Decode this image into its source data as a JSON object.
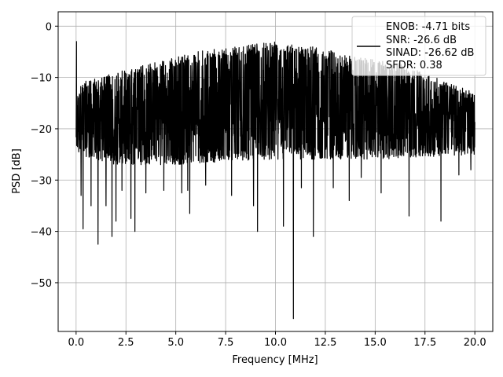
{
  "chart_data": {
    "type": "line",
    "xlabel": "Frequency [MHz]",
    "ylabel": "PSD [dB]",
    "xlim": [
      -0.9,
      20.9
    ],
    "ylim": [
      -59.5,
      2.8
    ],
    "xticks": [
      0.0,
      2.5,
      5.0,
      7.5,
      10.0,
      12.5,
      15.0,
      17.5,
      20.0
    ],
    "xtick_labels": [
      "0.0",
      "2.5",
      "5.0",
      "7.5",
      "10.0",
      "12.5",
      "15.0",
      "17.5",
      "20.0"
    ],
    "yticks": [
      0,
      -10,
      -20,
      -30,
      -40,
      -50
    ],
    "ytick_labels": [
      "0",
      "−10",
      "−20",
      "−30",
      "−40",
      "−50"
    ],
    "grid": true,
    "legend_placement": "top-right",
    "line_color": "#000000",
    "legend": [
      "ENOB: -4.71 bits",
      "SNR: -26.6 dB",
      "SINAD: -26.62 dB",
      "SFDR: 0.38"
    ],
    "series": [
      {
        "x_range": [
          0,
          20
        ],
        "band_upper": [
          [
            0,
            -14
          ],
          [
            0.2,
            -11
          ],
          [
            2,
            -9
          ],
          [
            4,
            -7
          ],
          [
            6,
            -5
          ],
          [
            8,
            -4
          ],
          [
            10,
            -3
          ],
          [
            12,
            -4
          ],
          [
            14,
            -6
          ],
          [
            16,
            -7
          ],
          [
            18,
            -10
          ],
          [
            20,
            -13
          ]
        ],
        "band_lower": [
          [
            0,
            -25
          ],
          [
            2,
            -27
          ],
          [
            5,
            -27
          ],
          [
            10,
            -26
          ],
          [
            15,
            -26
          ],
          [
            20,
            -25
          ]
        ],
        "spikes": [
          {
            "x": 0.02,
            "y": -3.0
          },
          {
            "x": 0.25,
            "y": -33.0
          },
          {
            "x": 0.35,
            "y": -39.5
          },
          {
            "x": 0.75,
            "y": -35.0
          },
          {
            "x": 1.1,
            "y": -42.5
          },
          {
            "x": 1.5,
            "y": -35.0
          },
          {
            "x": 1.8,
            "y": -41.0
          },
          {
            "x": 2.0,
            "y": -38.0
          },
          {
            "x": 2.3,
            "y": -32.0
          },
          {
            "x": 2.75,
            "y": -37.5
          },
          {
            "x": 2.95,
            "y": -40.0
          },
          {
            "x": 3.5,
            "y": -32.5
          },
          {
            "x": 4.4,
            "y": -32.0
          },
          {
            "x": 5.3,
            "y": -32.5
          },
          {
            "x": 5.6,
            "y": -32.0
          },
          {
            "x": 5.7,
            "y": -36.5
          },
          {
            "x": 6.5,
            "y": -31.0
          },
          {
            "x": 7.8,
            "y": -33.0
          },
          {
            "x": 8.9,
            "y": -35.0
          },
          {
            "x": 9.1,
            "y": -40.0
          },
          {
            "x": 10.4,
            "y": -39.0
          },
          {
            "x": 10.9,
            "y": -57.0
          },
          {
            "x": 11.3,
            "y": -31.5
          },
          {
            "x": 11.9,
            "y": -41.0
          },
          {
            "x": 12.9,
            "y": -31.5
          },
          {
            "x": 13.7,
            "y": -34.0
          },
          {
            "x": 14.3,
            "y": -29.5
          },
          {
            "x": 15.3,
            "y": -32.5
          },
          {
            "x": 16.7,
            "y": -37.0
          },
          {
            "x": 18.3,
            "y": -38.0
          },
          {
            "x": 19.2,
            "y": -29.0
          },
          {
            "x": 19.8,
            "y": -28.0
          }
        ]
      }
    ]
  }
}
